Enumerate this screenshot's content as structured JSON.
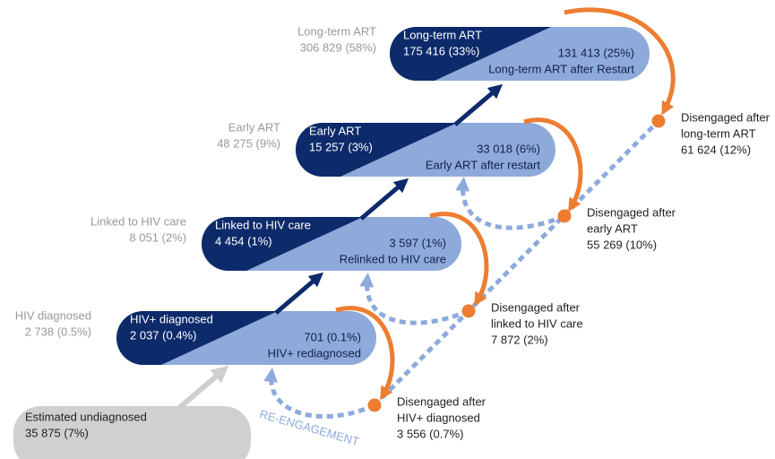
{
  "stages": [
    {
      "side_label": "HIV diagnosed",
      "side_value": "2 738 (0.5%)",
      "box_title": "HIV+ diagnosed",
      "box_value": "2 037 (0.4%)",
      "restart_value": "701 (0.1%)",
      "restart_label": "HIV+ rediagnosed"
    },
    {
      "side_label": "Linked to HIV care",
      "side_value": "8 051 (2%)",
      "box_title": "Linked to HIV care",
      "box_value": "4 454 (1%)",
      "restart_value": "3 597 (1%)",
      "restart_label": "Relinked to HIV care"
    },
    {
      "side_label": "Early ART",
      "side_value": "48 275 (9%)",
      "box_title": "Early ART",
      "box_value": "15 257 (3%)",
      "restart_value": "33 018 (6%)",
      "restart_label": "Early ART after restart"
    },
    {
      "side_label": "Long-term ART",
      "side_value": "306 829 (58%)",
      "box_title": "Long-term ART",
      "box_value": "175 416 (33%)",
      "restart_value": "131 413 (25%)",
      "restart_label": "Long-term ART after Restart"
    }
  ],
  "undiagnosed": {
    "label": "Estimated undiagnosed",
    "value": "35 875 (7%)"
  },
  "disengaged": [
    {
      "lines": [
        "Disengaged after",
        "HIV+ diagnosed"
      ],
      "value": "3 556 (0.7%)"
    },
    {
      "lines": [
        "Disengaged after",
        "linked to HIV care"
      ],
      "value": "7 872 (2%)"
    },
    {
      "lines": [
        "Disengaged after",
        "early ART"
      ],
      "value": "55 269 (10%)"
    },
    {
      "lines": [
        "Disengaged after",
        "long-term ART"
      ],
      "value": "61 624 (12%)"
    }
  ],
  "re_engagement": "RE-ENGAGEMENT"
}
